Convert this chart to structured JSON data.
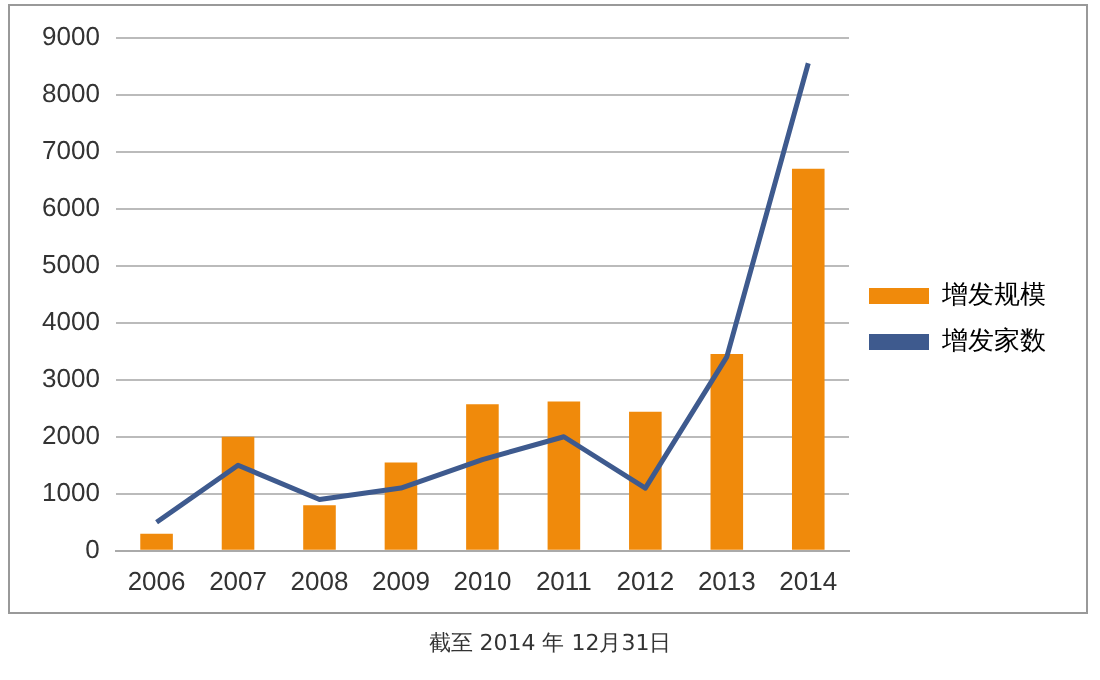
{
  "chart_data": {
    "type": "bar",
    "categories": [
      "2006",
      "2007",
      "2008",
      "2009",
      "2010",
      "2011",
      "2012",
      "2013",
      "2014"
    ],
    "series": [
      {
        "name": "增发规模",
        "color": "#f08a0b",
        "values": [
          300,
          2000,
          800,
          1550,
          2570,
          2620,
          2440,
          3450,
          6700
        ]
      },
      {
        "name": "增发家数",
        "type": "line",
        "color": "#3e5a8e",
        "values": [
          500,
          1500,
          900,
          1100,
          1600,
          2000,
          1100,
          3400,
          8550
        ]
      }
    ],
    "ylim": [
      0,
      9000
    ],
    "yticks": [
      0,
      1000,
      2000,
      3000,
      4000,
      5000,
      6000,
      7000,
      8000,
      9000
    ],
    "grid": "y",
    "legend": "right",
    "marker": "none",
    "annotations": [
      "截至 2014 年 12月31日"
    ]
  }
}
